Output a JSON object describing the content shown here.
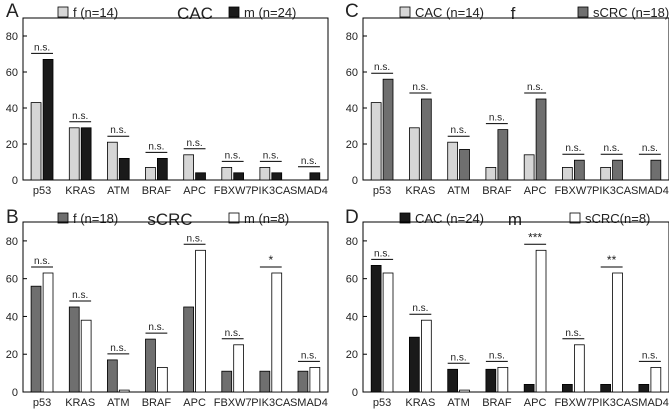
{
  "colors": {
    "f": "#d6d6d6",
    "m": "#1a1a1a",
    "CAC": "#d6d6d6",
    "sCRC": "#6f6f6f",
    "CAC_D": "#1a1a1a",
    "sCRC_D": "#ffffff",
    "axis": "#000000"
  },
  "chart_data": [
    {
      "panel": "A",
      "type": "bar",
      "title": "CAC",
      "categories": [
        "p53",
        "KRAS",
        "ATM",
        "BRAF",
        "APC",
        "FBXW7",
        "PIK3CA",
        "SMAD4"
      ],
      "series": [
        {
          "name": "f (n=14)",
          "color_key": "f",
          "values": [
            43,
            29,
            21,
            7,
            14,
            7,
            7,
            0
          ]
        },
        {
          "name": "m (n=24)",
          "color_key": "m",
          "values": [
            67,
            29,
            12,
            12,
            4,
            4,
            4,
            4
          ]
        }
      ],
      "significance": [
        "n.s.",
        "n.s.",
        "n.s.",
        "n.s.",
        "n.s.",
        "n.s.",
        "n.s.",
        "n.s."
      ],
      "ylim": [
        0,
        90
      ],
      "yticks": [
        0,
        20,
        40,
        60,
        80
      ],
      "legend_position": "top",
      "xlabel": "",
      "ylabel": ""
    },
    {
      "panel": "B",
      "type": "bar",
      "title": "sCRC",
      "categories": [
        "p53",
        "KRAS",
        "ATM",
        "BRAF",
        "APC",
        "FBXW7",
        "PIK3CA",
        "SMAD4"
      ],
      "series": [
        {
          "name": "f (n=18)",
          "color_key": "sCRC",
          "values": [
            56,
            45,
            17,
            28,
            45,
            11,
            11,
            11
          ]
        },
        {
          "name": "m (n=8)",
          "color_key": "sCRC_D",
          "values": [
            63,
            38,
            1,
            13,
            75,
            25,
            63,
            13
          ]
        }
      ],
      "significance": [
        "n.s.",
        "n.s.",
        "n.s.",
        "n.s.",
        "n.s.",
        "n.s.",
        "*",
        "n.s."
      ],
      "ylim": [
        0,
        90
      ],
      "yticks": [
        0,
        20,
        40,
        60,
        80
      ],
      "legend_position": "top",
      "xlabel": "",
      "ylabel": ""
    },
    {
      "panel": "C",
      "type": "bar",
      "title": "f",
      "categories": [
        "p53",
        "KRAS",
        "ATM",
        "BRAF",
        "APC",
        "FBXW7",
        "PIK3CA",
        "SMAD4"
      ],
      "series": [
        {
          "name": "CAC (n=14)",
          "color_key": "CAC",
          "values": [
            43,
            29,
            21,
            7,
            14,
            7,
            7,
            0
          ]
        },
        {
          "name": "sCRC (n=18)",
          "color_key": "sCRC",
          "values": [
            56,
            45,
            17,
            28,
            45,
            11,
            11,
            11
          ]
        }
      ],
      "significance": [
        "n.s.",
        "n.s.",
        "n.s.",
        "n.s.",
        "n.s.",
        "n.s.",
        "n.s.",
        "n.s."
      ],
      "ylim": [
        0,
        90
      ],
      "yticks": [
        0,
        20,
        40,
        60,
        80
      ],
      "legend_position": "top",
      "xlabel": "",
      "ylabel": ""
    },
    {
      "panel": "D",
      "type": "bar",
      "title": "m",
      "categories": [
        "p53",
        "KRAS",
        "ATM",
        "BRAF",
        "APC",
        "FBXW7",
        "PIK3CA",
        "SMAD4"
      ],
      "series": [
        {
          "name": "CAC (n=24)",
          "color_key": "CAC_D",
          "values": [
            67,
            29,
            12,
            12,
            4,
            4,
            4,
            4
          ]
        },
        {
          "name": "sCRC(n=8)",
          "color_key": "sCRC_D",
          "values": [
            63,
            38,
            1,
            13,
            75,
            25,
            63,
            13
          ]
        }
      ],
      "significance": [
        "n.s.",
        "n.s.",
        "n.s.",
        "n.s.",
        "***",
        "n.s.",
        "**",
        "n.s."
      ],
      "ylim": [
        0,
        90
      ],
      "yticks": [
        0,
        20,
        40,
        60,
        80
      ],
      "legend_position": "top",
      "xlabel": "",
      "ylabel": ""
    }
  ]
}
